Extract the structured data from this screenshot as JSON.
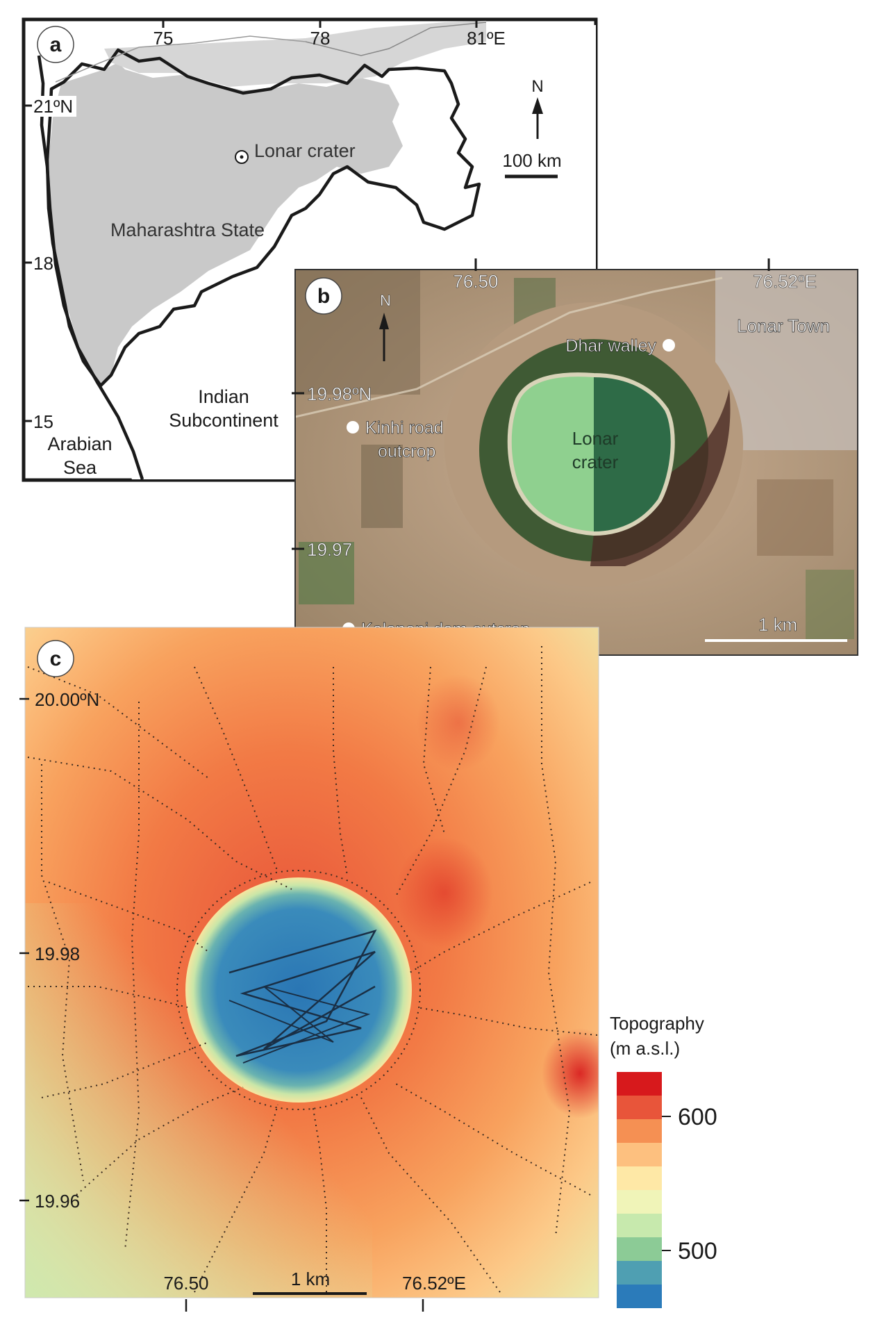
{
  "panels": {
    "a": {
      "label": "a",
      "lon_ticks": [
        "75",
        "78",
        "81ºE"
      ],
      "lat_ticks": [
        "21ºN",
        "18",
        "15"
      ],
      "state_name": "Maharashtra State",
      "site_name": "Lonar crater",
      "north": "N",
      "scale": "100 km",
      "region_1": "Indian",
      "region_2": "Subcontinent",
      "sea_1": "Arabian",
      "sea_2": "Sea"
    },
    "b": {
      "label": "b",
      "lon_ticks": [
        "76.50",
        "76.52ºE"
      ],
      "lat_ticks": [
        "19.98ºN",
        "19.97"
      ],
      "north": "N",
      "scale": "1 km",
      "town": "Lonar Town",
      "crater_1": "Lonar",
      "crater_2": "crater",
      "sites": {
        "dhar": "Dhar walley",
        "kinhi_1": "Kinhi road",
        "kinhi_2": "outcrop",
        "kalapani": "Kalapani dam outcrop"
      },
      "colors": {
        "lake_light": "#8fd08f",
        "lake_dark": "#2e6b47",
        "ground": "#b79a80"
      }
    },
    "c": {
      "label": "c",
      "lat_ticks": [
        "20.00ºN",
        "19.98",
        "19.96"
      ],
      "lon_ticks": [
        "76.50",
        "76.52ºE"
      ],
      "scale": "1 km",
      "legend_title_1": "Topography",
      "legend_title_2": "(m a.s.l.)",
      "legend_ticks": [
        "600",
        "500"
      ],
      "legend_colors": [
        "#d7191c",
        "#e8553a",
        "#f59053",
        "#fdc07f",
        "#fee8a6",
        "#f0f4b8",
        "#c7e9ad",
        "#8ccb96",
        "#4f9fb2",
        "#2b7bba"
      ]
    }
  }
}
